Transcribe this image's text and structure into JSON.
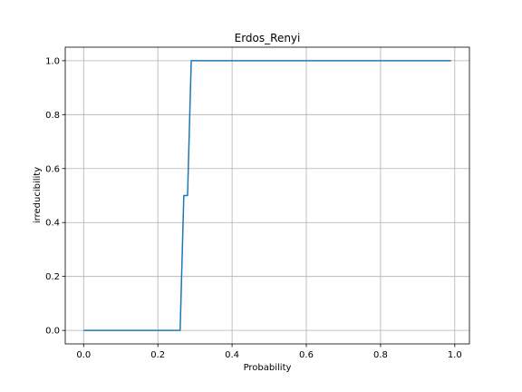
{
  "chart_data": {
    "type": "line",
    "title": "Erdos_Renyi",
    "xlabel": "Probability",
    "ylabel": "irreducibility",
    "xlim": [
      -0.0495,
      1.0395
    ],
    "ylim": [
      -0.05,
      1.05
    ],
    "xticks": [
      0.0,
      0.2,
      0.4,
      0.6,
      0.8,
      1.0
    ],
    "xtick_labels": [
      "0.0",
      "0.2",
      "0.4",
      "0.6",
      "0.8",
      "1.0"
    ],
    "yticks": [
      0.0,
      0.2,
      0.4,
      0.6,
      0.8,
      1.0
    ],
    "ytick_labels": [
      "0.0",
      "0.2",
      "0.4",
      "0.6",
      "0.8",
      "1.0"
    ],
    "grid": true,
    "series": [
      {
        "color": "#1f77b4",
        "x": [
          0.0,
          0.26,
          0.27,
          0.28,
          0.29,
          0.99
        ],
        "y": [
          0.0,
          0.0,
          0.5,
          0.5,
          1.0,
          1.0
        ]
      }
    ]
  }
}
